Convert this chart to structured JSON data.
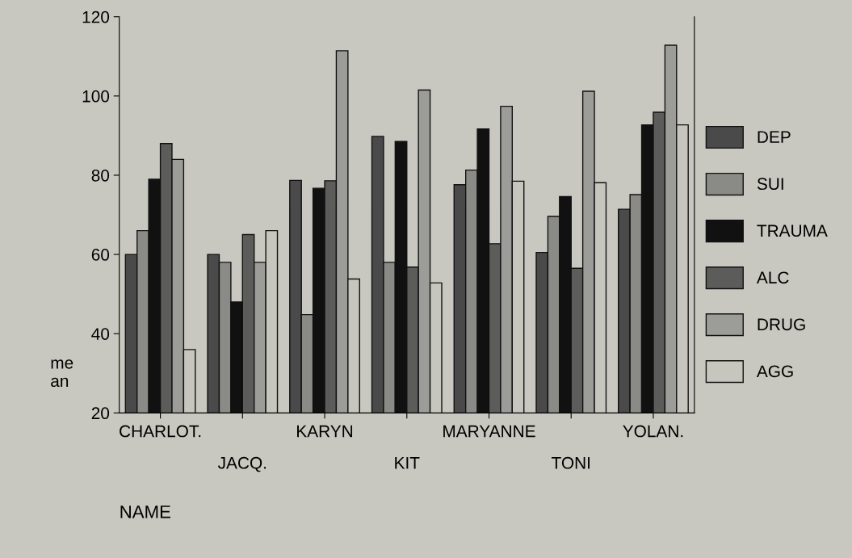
{
  "chart_data": {
    "type": "bar",
    "xlabel": "NAME",
    "ylabel": "me\nan",
    "categories": [
      "CHARLOT.",
      "JACQ.",
      "KARYN",
      "KIT",
      "MARYANNE",
      "TONI",
      "YOLAN."
    ],
    "series": [
      {
        "name": "DEP",
        "color": "#4a4a4a",
        "values": [
          60,
          60,
          78.7,
          89.8,
          77.6,
          60.5,
          71.4
        ]
      },
      {
        "name": "SUI",
        "color": "#8a8a86",
        "values": [
          66,
          58,
          44.8,
          58,
          81.3,
          69.6,
          75.1
        ]
      },
      {
        "name": "TRAUMA",
        "color": "#111111",
        "values": [
          79,
          48,
          76.7,
          88.5,
          91.7,
          74.6,
          92.7
        ]
      },
      {
        "name": "ALC",
        "color": "#5c5c5a",
        "values": [
          88,
          65,
          78.6,
          56.8,
          62.7,
          56.5,
          95.9
        ]
      },
      {
        "name": "DRUG",
        "color": "#9c9c98",
        "values": [
          84,
          58,
          111.4,
          101.5,
          97.4,
          101.2,
          112.8
        ]
      },
      {
        "name": "AGG",
        "color": "#c6c6be",
        "values": [
          36,
          66,
          53.8,
          52.8,
          78.5,
          78.1,
          92.7
        ]
      }
    ],
    "ylim": [
      20,
      120
    ],
    "yticks": [
      20,
      40,
      60,
      80,
      100,
      120
    ],
    "legend": "right",
    "grid": false
  }
}
